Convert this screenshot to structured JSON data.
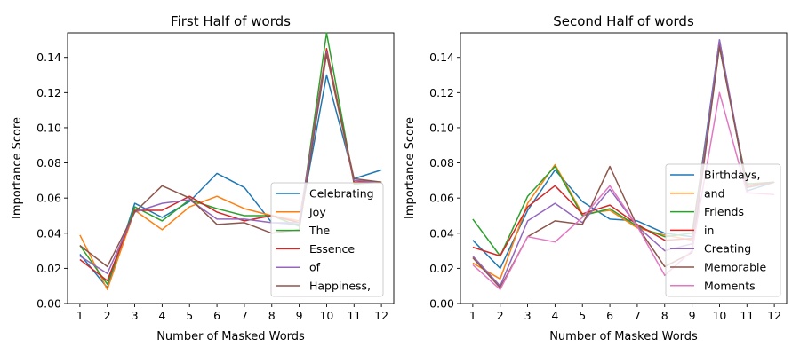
{
  "chart_data": [
    {
      "type": "line",
      "title": "First Half of words",
      "xlabel": "Number of Masked Words",
      "ylabel": "Importance Score",
      "x": [
        1,
        2,
        3,
        4,
        5,
        6,
        7,
        8,
        9,
        10,
        11,
        12
      ],
      "xticks": [
        "1",
        "2",
        "3",
        "4",
        "5",
        "6",
        "7",
        "8",
        "9",
        "10",
        "11",
        "12"
      ],
      "ylim": [
        0,
        0.154
      ],
      "yticks": [
        "0.00",
        "0.02",
        "0.04",
        "0.06",
        "0.08",
        "0.10",
        "0.12",
        "0.14"
      ],
      "legend_position": "lower-right",
      "series": [
        {
          "name": "Celebrating",
          "color": "#1f77b4",
          "values": [
            0.028,
            0.009,
            0.057,
            0.049,
            0.058,
            0.074,
            0.066,
            0.046,
            0.045,
            0.13,
            0.071,
            0.076
          ]
        },
        {
          "name": "Joy",
          "color": "#ff7f0e",
          "values": [
            0.039,
            0.008,
            0.053,
            0.042,
            0.055,
            0.061,
            0.054,
            0.05,
            0.047,
            0.142,
            0.069,
            0.069
          ]
        },
        {
          "name": "The",
          "color": "#2ca02c",
          "values": [
            0.033,
            0.011,
            0.055,
            0.047,
            0.059,
            0.054,
            0.05,
            0.05,
            0.044,
            0.154,
            0.068,
            0.069
          ]
        },
        {
          "name": "Essence",
          "color": "#d62728",
          "values": [
            0.025,
            0.013,
            0.053,
            0.053,
            0.061,
            0.052,
            0.047,
            0.05,
            0.046,
            0.145,
            0.069,
            0.069
          ]
        },
        {
          "name": "of",
          "color": "#9467bd",
          "values": [
            0.027,
            0.017,
            0.052,
            0.057,
            0.059,
            0.048,
            0.048,
            0.046,
            0.046,
            0.143,
            0.07,
            0.069
          ]
        },
        {
          "name": "Happiness,",
          "color": "#8c564b",
          "values": [
            0.033,
            0.021,
            0.052,
            0.067,
            0.06,
            0.045,
            0.046,
            0.04,
            0.042,
            0.142,
            0.071,
            0.069
          ]
        }
      ]
    },
    {
      "type": "line",
      "title": "Second Half of words",
      "xlabel": "Number of Masked Words",
      "ylabel": "Importance Score",
      "x": [
        1,
        2,
        3,
        4,
        5,
        6,
        7,
        8,
        9,
        10,
        11,
        12
      ],
      "xticks": [
        "1",
        "2",
        "3",
        "4",
        "5",
        "6",
        "7",
        "8",
        "9",
        "10",
        "11",
        "12"
      ],
      "ylim": [
        0,
        0.154
      ],
      "yticks": [
        "0.00",
        "0.02",
        "0.04",
        "0.06",
        "0.08",
        "0.10",
        "0.12",
        "0.14"
      ],
      "legend_position": "lower-right",
      "series": [
        {
          "name": "Birthdays,",
          "color": "#1f77b4",
          "values": [
            0.036,
            0.02,
            0.053,
            0.076,
            0.058,
            0.048,
            0.047,
            0.04,
            0.038,
            0.15,
            0.064,
            0.069
          ]
        },
        {
          "name": "and",
          "color": "#ff7f0e",
          "values": [
            0.023,
            0.014,
            0.057,
            0.079,
            0.051,
            0.053,
            0.043,
            0.039,
            0.036,
            0.148,
            0.066,
            0.069
          ]
        },
        {
          "name": "Friends",
          "color": "#2ca02c",
          "values": [
            0.048,
            0.027,
            0.061,
            0.078,
            0.05,
            0.054,
            0.044,
            0.038,
            0.04,
            0.146,
            0.068,
            0.069
          ]
        },
        {
          "name": "in",
          "color": "#d62728",
          "values": [
            0.032,
            0.027,
            0.055,
            0.067,
            0.051,
            0.056,
            0.045,
            0.036,
            0.037,
            0.147,
            0.067,
            0.069
          ]
        },
        {
          "name": "Creating",
          "color": "#9467bd",
          "values": [
            0.027,
            0.01,
            0.047,
            0.057,
            0.046,
            0.065,
            0.044,
            0.03,
            0.034,
            0.15,
            0.066,
            0.069
          ]
        },
        {
          "name": "Memorable",
          "color": "#8c564b",
          "values": [
            0.026,
            0.009,
            0.038,
            0.047,
            0.045,
            0.078,
            0.044,
            0.021,
            0.029,
            0.146,
            0.066,
            0.069
          ]
        },
        {
          "name": "Moments",
          "color": "#e377c2",
          "values": [
            0.022,
            0.008,
            0.038,
            0.035,
            0.049,
            0.067,
            0.044,
            0.016,
            0.03,
            0.12,
            0.063,
            0.062
          ]
        }
      ]
    }
  ]
}
